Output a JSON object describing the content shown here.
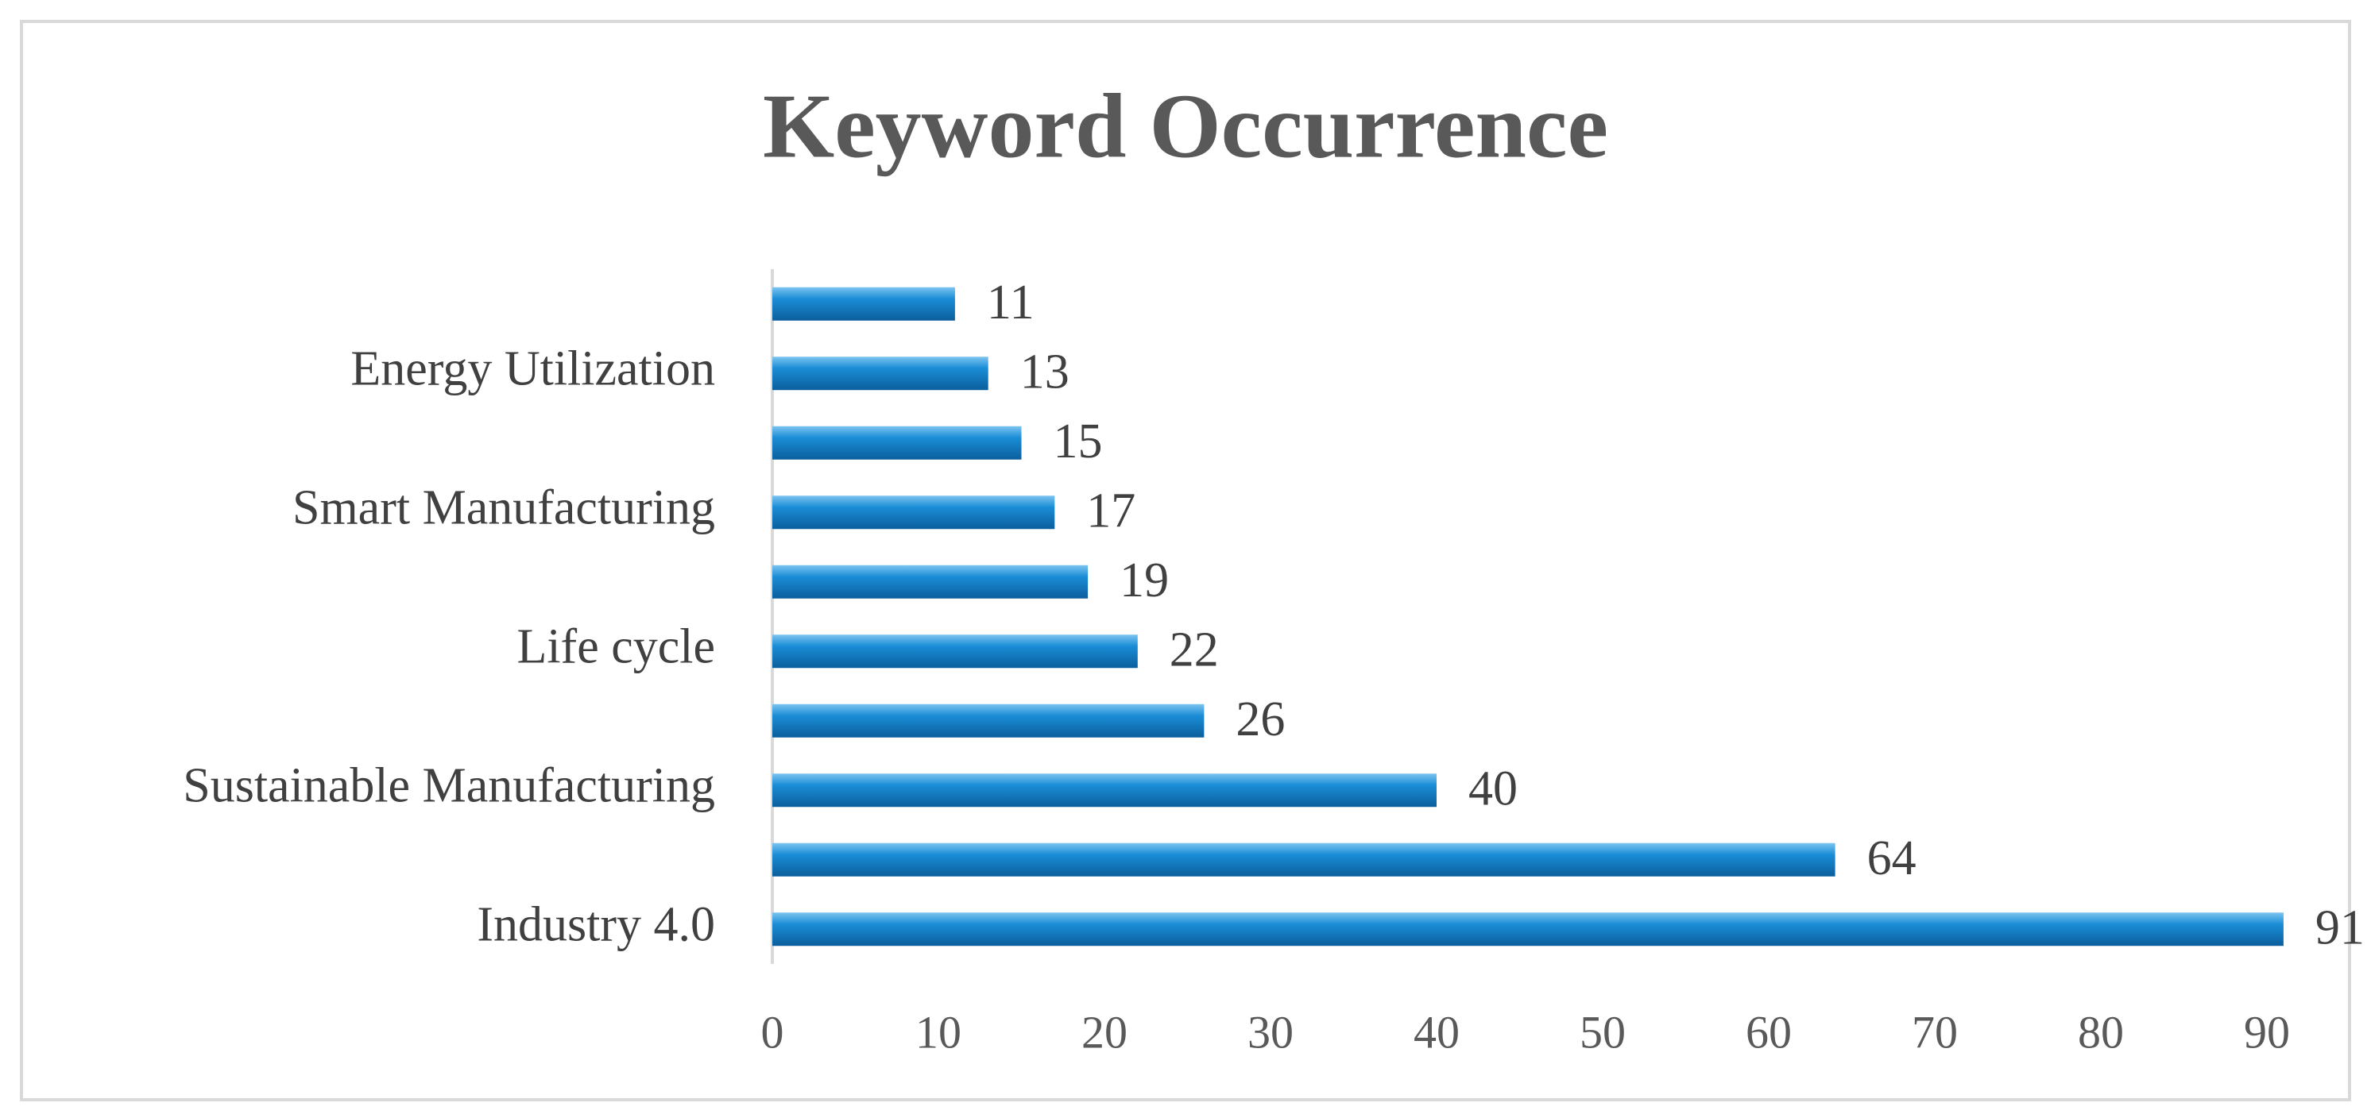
{
  "chart_data": {
    "type": "barh",
    "title": "Keyword Occurrence",
    "categories": [
      "Industry 4.0",
      null,
      "Sustainable Manufacturing",
      null,
      "Life cycle",
      null,
      "Smart Manufacturing",
      null,
      "Energy Utilization",
      null
    ],
    "values": [
      91,
      64,
      40,
      26,
      22,
      19,
      17,
      15,
      13,
      11
    ],
    "color": "#1a8dd6",
    "xlim": [
      0,
      90
    ],
    "xticks": [
      0,
      10,
      20,
      30,
      40,
      50,
      60,
      70,
      80,
      90
    ],
    "grid": false
  }
}
